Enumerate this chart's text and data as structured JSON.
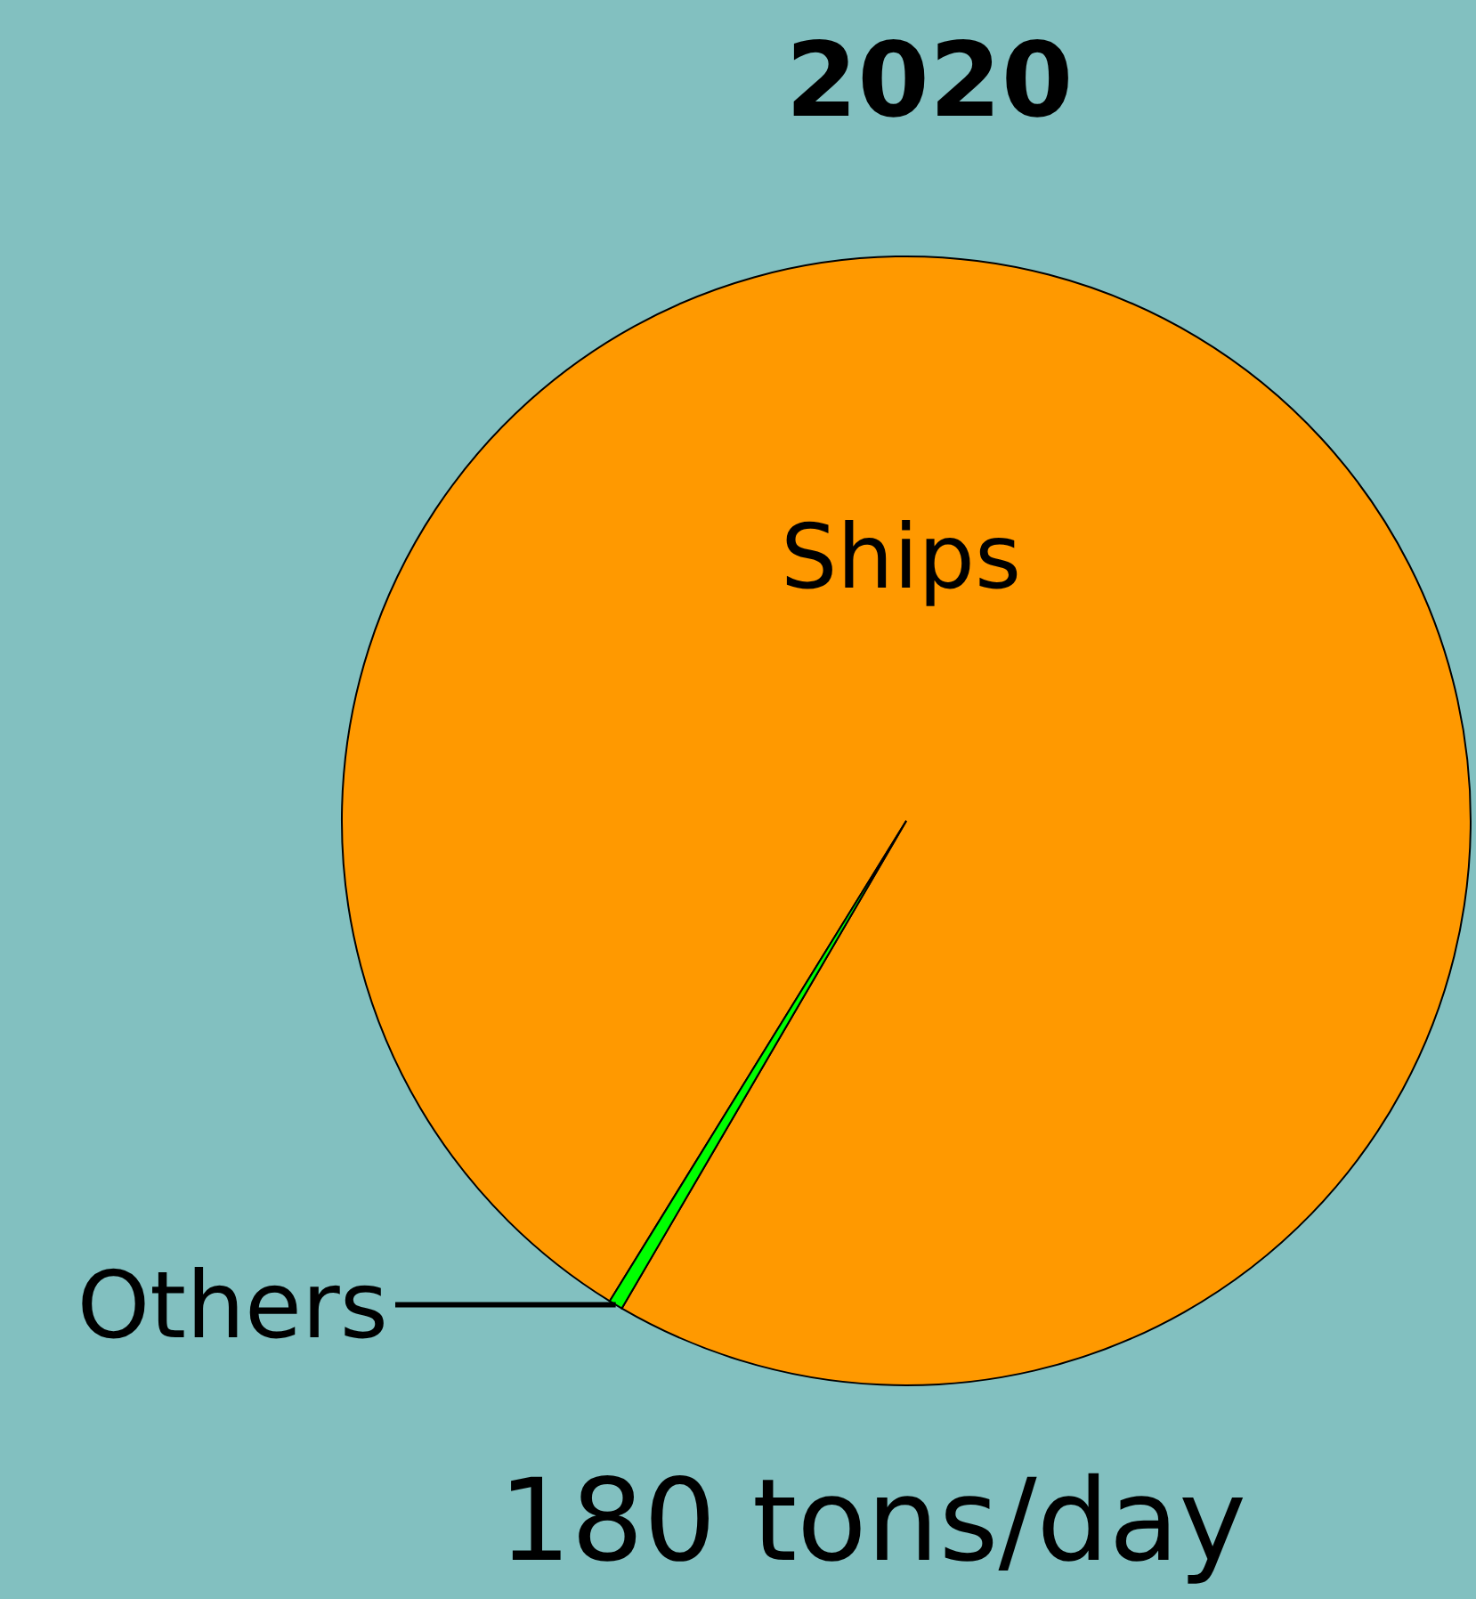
{
  "chart_data": {
    "type": "pie",
    "title": "2020",
    "categories": [
      "Ships",
      "Others"
    ],
    "values": [
      99.6,
      0.4
    ],
    "colors": [
      "#ff9900",
      "#00ff00"
    ],
    "annotations": [
      "180 tons/day"
    ],
    "legend": false
  }
}
